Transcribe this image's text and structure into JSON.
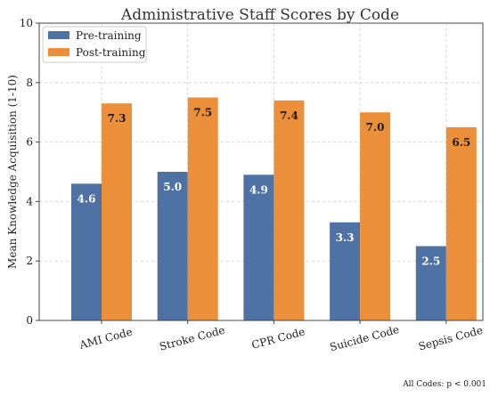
{
  "chart_data": {
    "type": "bar",
    "title": "Administrative Staff Scores by Code",
    "xlabel": "",
    "ylabel": "Mean Knowledge Acquisition (1-10)",
    "categories": [
      "AMI Code",
      "Stroke Code",
      "CPR Code",
      "Suicide Code",
      "Sepsis Code"
    ],
    "series": [
      {
        "name": "Pre-training",
        "values": [
          4.6,
          5.0,
          4.9,
          3.3,
          2.5
        ],
        "labels": [
          "4.6",
          "5.0",
          "4.9",
          "3.3",
          "2.5"
        ],
        "color": "#4f72a4",
        "label_color": "#ffffff"
      },
      {
        "name": "Post-training",
        "values": [
          7.3,
          7.5,
          7.4,
          7.0,
          6.5
        ],
        "labels": [
          "7.3",
          "7.5",
          "7.4",
          "7.0",
          "6.5"
        ],
        "color": "#ec8f3a",
        "label_color": "#1a1a1a"
      }
    ],
    "ylim": [
      0,
      10
    ],
    "yticks": [
      "0",
      "2",
      "4",
      "6",
      "8",
      "10"
    ],
    "grid": true,
    "legend_position": "top-left",
    "annotation": "All Codes: p < 0.001"
  }
}
